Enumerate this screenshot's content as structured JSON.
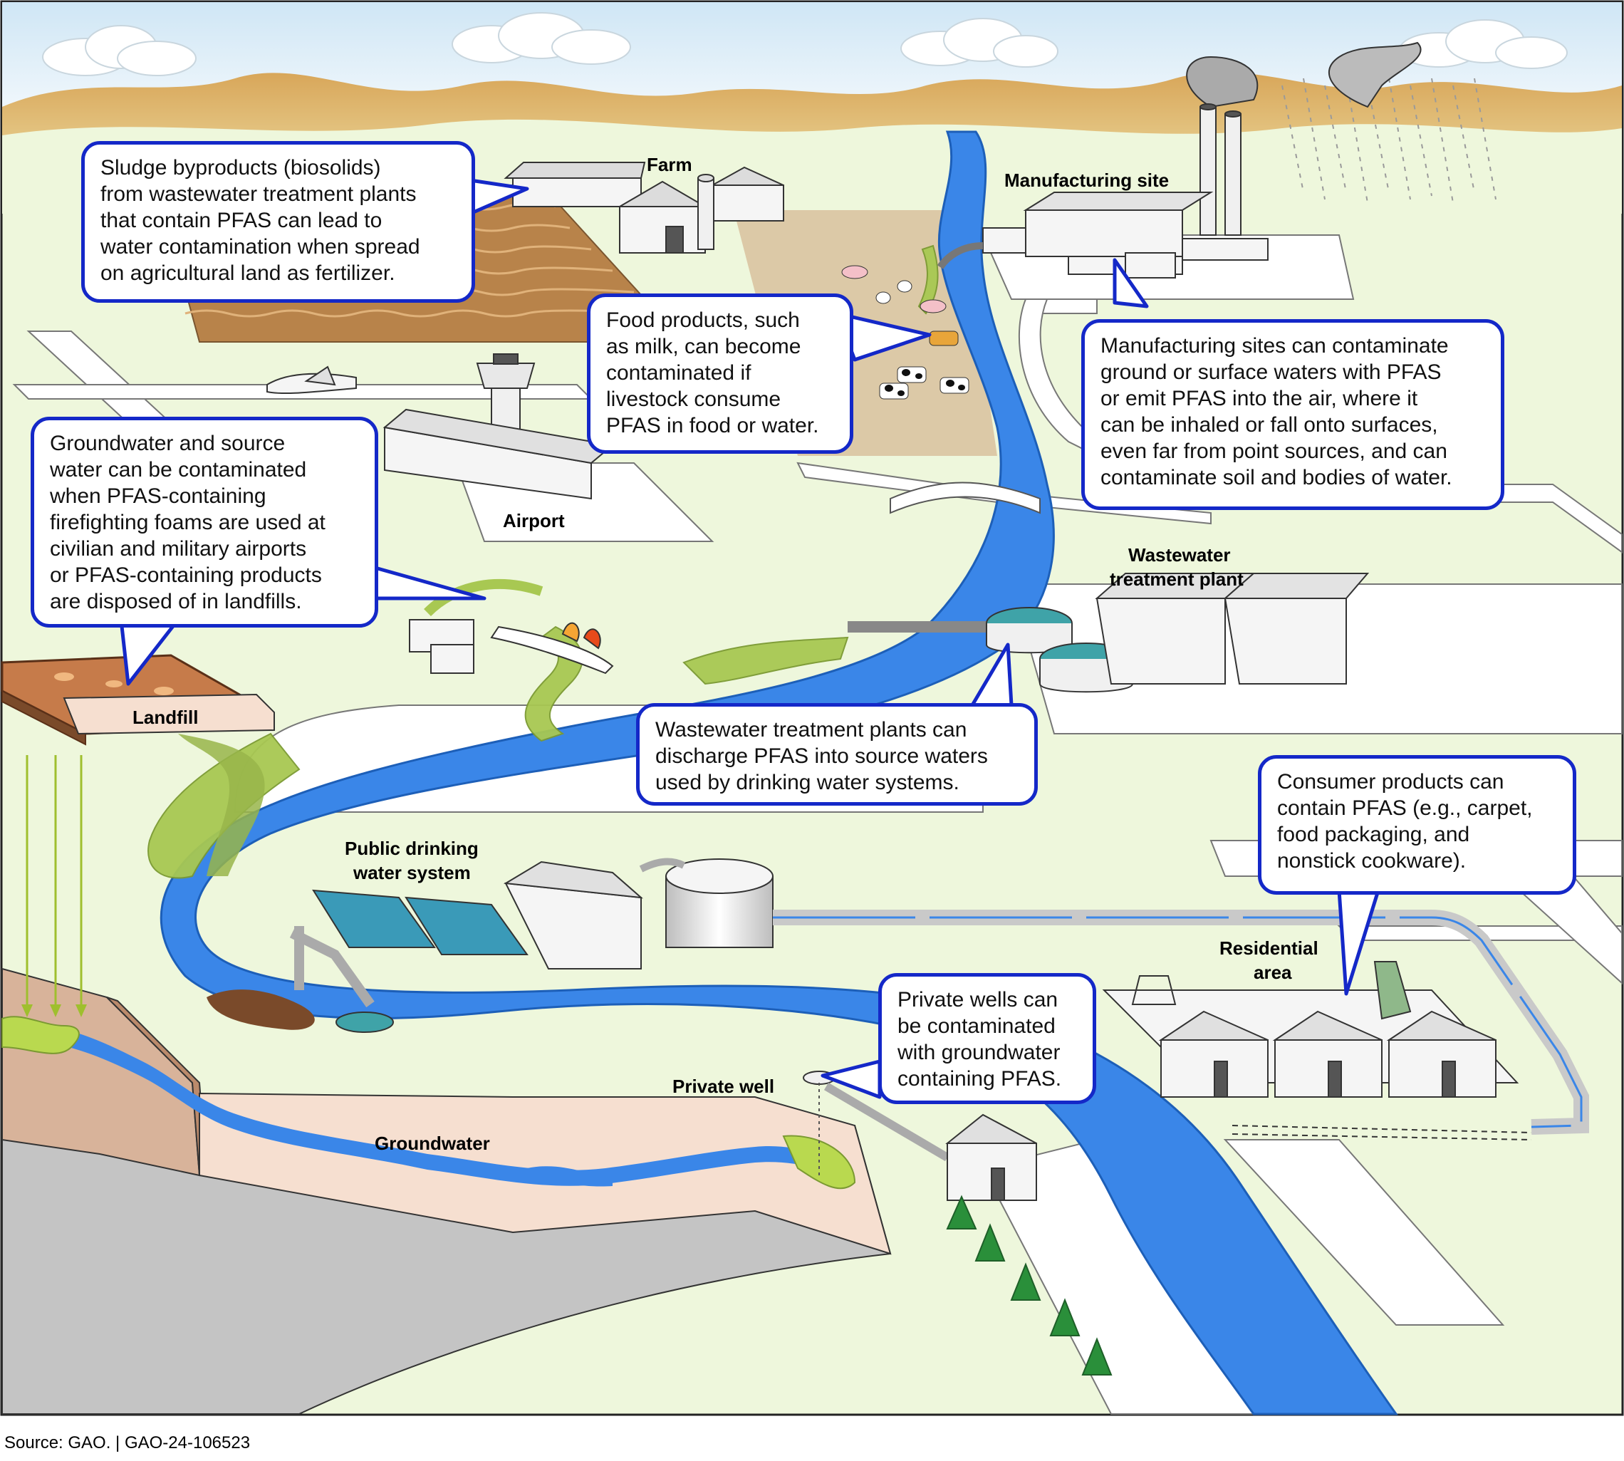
{
  "labels": {
    "farm": "Farm",
    "manufacturing_site": "Manufacturing site",
    "airport": "Airport",
    "wastewater_plant_line1": "Wastewater",
    "wastewater_plant_line2": "treatment plant",
    "landfill": "Landfill",
    "public_water_line1": "Public drinking",
    "public_water_line2": "water system",
    "residential_line1": "Residential",
    "residential_line2": "area",
    "private_well": "Private well",
    "groundwater": "Groundwater"
  },
  "callouts": {
    "sludge": "Sludge byproducts (biosolids)\nfrom wastewater treatment plants\nthat contain PFAS can lead to\nwater contamination when spread\non agricultural land as fertilizer.",
    "food": "Food products, such\nas milk, can become\ncontaminated if\nlivestock consume\nPFAS in food or water.",
    "manufacturing": "Manufacturing sites can contaminate\nground or surface waters with PFAS\nor emit PFAS into the air, where it\ncan be inhaled or fall onto surfaces,\neven far from point sources, and can\ncontaminate soil and bodies of water.",
    "groundwater": "Groundwater and source\nwater can be contaminated\nwhen PFAS-containing\nfirefighting foams are used at\ncivilian and military airports\nor PFAS-containing products\nare disposed of in landfills.",
    "wastewater": "Wastewater treatment plants can\ndischarge PFAS into source waters\nused by drinking water systems.",
    "consumer": "Consumer products can\ncontain PFAS (e.g., carpet,\nfood packaging, and\nnonstick cookware).",
    "private_wells": "Private wells can\nbe contaminated\nwith groundwater\ncontaining PFAS."
  },
  "source": "Source: GAO.  |  GAO-24-106523",
  "colors": {
    "river": "#3a86e8",
    "contamination": "#9cc34a",
    "land": "#eef7dc",
    "hills": "#d9b56a",
    "callout_border": "#1428c8"
  }
}
